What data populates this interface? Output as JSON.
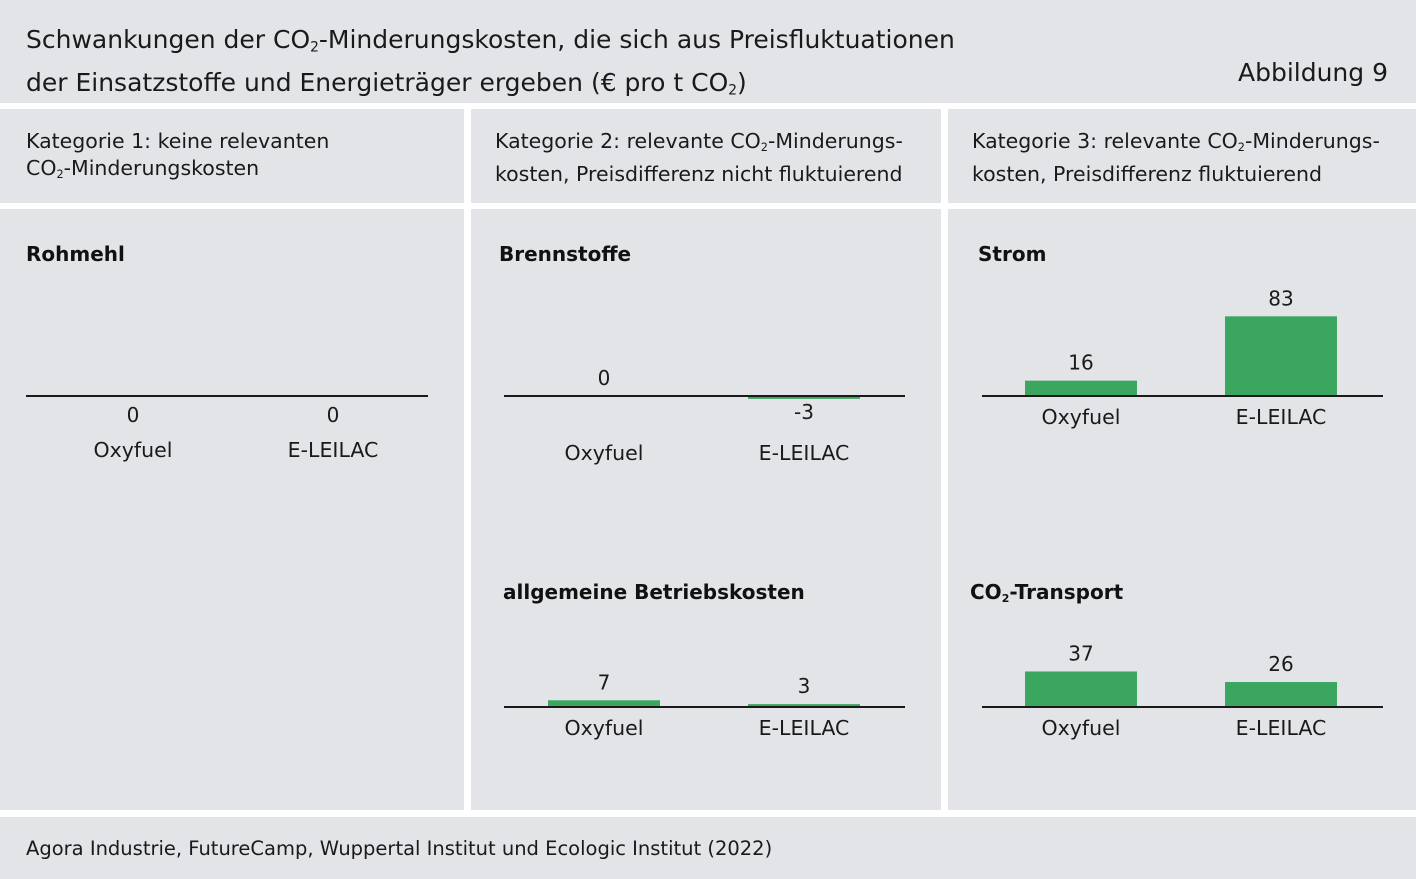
{
  "header": {
    "title_line1_a": "Schwankungen der CO",
    "title_line1_sub": "2",
    "title_line1_b": "-Minderungskosten, die sich aus Preisfluktuationen",
    "title_line2_a": "der Einsatzstoffe und Energieträger ergeben (€ pro t CO",
    "title_line2_sub": "2",
    "title_line2_b": ")",
    "figure_label": "Abbildung 9"
  },
  "categories": [
    {
      "line1": "Kategorie 1: keine relevanten",
      "line2_a": "CO",
      "line2_sub": "2",
      "line2_b": "-Minderungskosten"
    },
    {
      "line1_a": "Kategorie 2: relevante CO",
      "line1_sub": "2",
      "line1_b": "-Minderungs-",
      "line2": "kosten, Preisdifferenz nicht fluktuierend"
    },
    {
      "line1_a": "Kategorie 3: relevante CO",
      "line1_sub": "2",
      "line1_b": "-Minderungs-",
      "line2": "kosten, Preisdifferenz fluktuierend"
    }
  ],
  "colors": {
    "bar": "#3aa660",
    "panel": "#e3e4e8",
    "axis": "#1a1a1a"
  },
  "chart_data": [
    {
      "type": "bar",
      "title": "Rohmehl",
      "categories": [
        "Oxyfuel",
        "E-LEILAC"
      ],
      "values": [
        0,
        0
      ]
    },
    {
      "type": "bar",
      "title": "Brennstoffe",
      "categories": [
        "Oxyfuel",
        "E-LEILAC"
      ],
      "values": [
        0,
        -3
      ]
    },
    {
      "type": "bar",
      "title": "allgemeine Betriebskosten",
      "categories": [
        "Oxyfuel",
        "E-LEILAC"
      ],
      "values": [
        7,
        3
      ]
    },
    {
      "type": "bar",
      "title": "Strom",
      "categories": [
        "Oxyfuel",
        "E-LEILAC"
      ],
      "values": [
        16,
        83
      ]
    },
    {
      "type": "bar",
      "title_a": "CO",
      "title_sub": "2",
      "title_b": "-Transport",
      "categories": [
        "Oxyfuel",
        "E-LEILAC"
      ],
      "values": [
        37,
        26
      ]
    }
  ],
  "source": "Agora Industrie, FutureCamp, Wuppertal Institut und Ecologic Institut (2022)"
}
